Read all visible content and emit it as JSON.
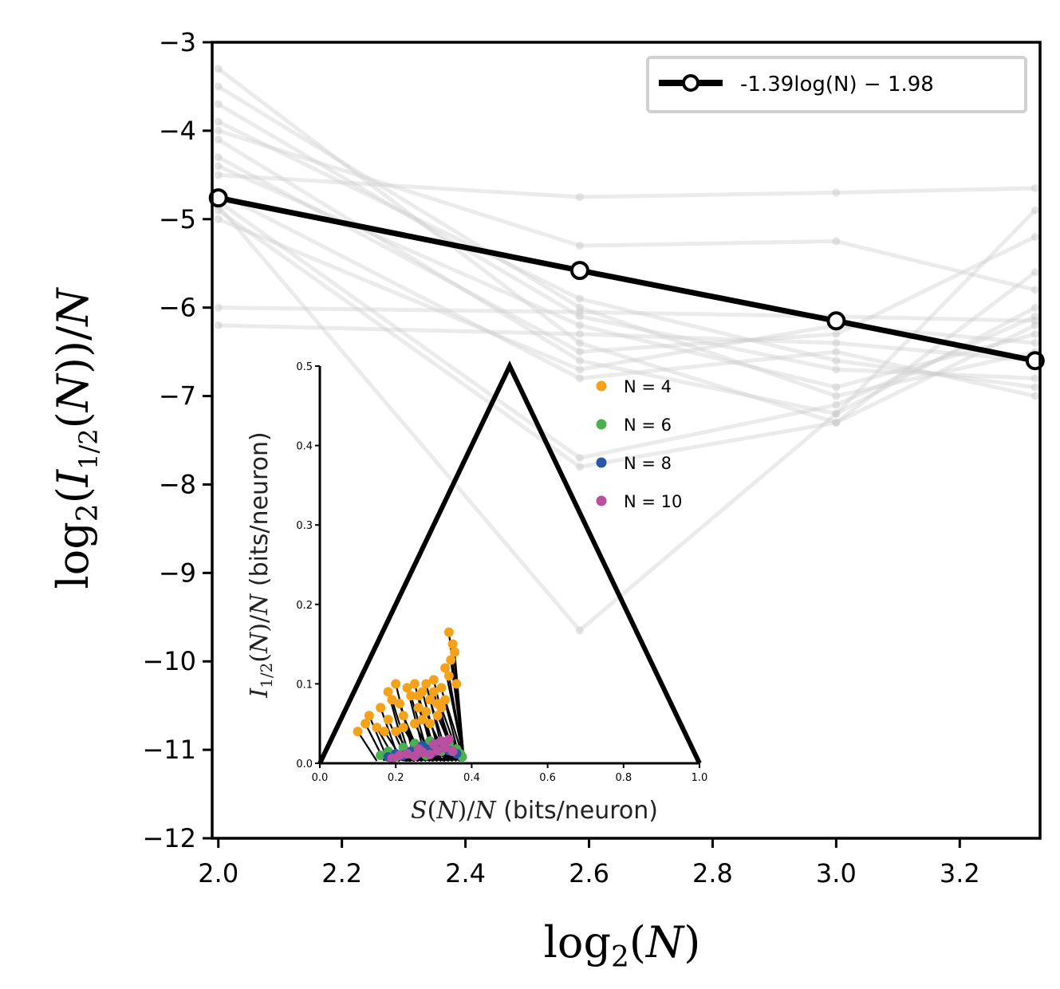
{
  "chart_data": [
    {
      "type": "line",
      "xlabel": "log2(N)",
      "ylabel": "log2(I1/2(N))/N",
      "xlim": [
        1.99,
        3.33
      ],
      "ylim": [
        -12,
        -3
      ],
      "xticks": [
        2.0,
        2.2,
        2.4,
        2.6,
        2.8,
        3.0,
        3.2
      ],
      "xtick_labels": [
        "2.0",
        "2.2",
        "2.4",
        "2.6",
        "2.8",
        "3.0",
        "3.2"
      ],
      "yticks": [
        -3,
        -4,
        -5,
        -6,
        -7,
        -8,
        -9,
        -10,
        -11,
        -12
      ],
      "ytick_labels": [
        "−3",
        "−4",
        "−5",
        "−6",
        "−7",
        "−8",
        "−9",
        "−10",
        "−11",
        "−12"
      ],
      "grid": false,
      "legend_position": "top-right",
      "fit": {
        "name": "-1.39log(N) − 1.98",
        "x": [
          2.0,
          2.585,
          3.0,
          3.322
        ],
        "y": [
          -4.76,
          -5.58,
          -6.15,
          -6.6
        ],
        "color": "#000000"
      },
      "background_series_color": "#cccccc",
      "background_series": [
        {
          "x": [
            2.0,
            2.585,
            3.0,
            3.322
          ],
          "y": [
            -3.3,
            -6.4,
            -7.3,
            -6.2
          ]
        },
        {
          "x": [
            2.0,
            2.585,
            3.0,
            3.322
          ],
          "y": [
            -3.5,
            -6.0,
            -7.0,
            -6.5
          ]
        },
        {
          "x": [
            2.0,
            2.585,
            3.0,
            3.322
          ],
          "y": [
            -3.7,
            -6.1,
            -6.7,
            -6.8
          ]
        },
        {
          "x": [
            2.0,
            2.585,
            3.0,
            3.322
          ],
          "y": [
            -3.9,
            -5.9,
            -6.6,
            -6.9
          ]
        },
        {
          "x": [
            2.0,
            2.585,
            3.0,
            3.322
          ],
          "y": [
            -4.0,
            -5.3,
            -5.25,
            -5.8
          ]
        },
        {
          "x": [
            2.0,
            2.585,
            3.0,
            3.322
          ],
          "y": [
            -4.1,
            -6.6,
            -7.2,
            -6.0
          ]
        },
        {
          "x": [
            2.0,
            2.585,
            3.0,
            3.322
          ],
          "y": [
            -4.3,
            -6.5,
            -6.3,
            -5.2
          ]
        },
        {
          "x": [
            2.0,
            2.585,
            3.0,
            3.322
          ],
          "y": [
            -4.4,
            -6.2,
            -6.9,
            -6.3
          ]
        },
        {
          "x": [
            2.0,
            2.585,
            3.0,
            3.322
          ],
          "y": [
            -4.5,
            -4.75,
            -4.7,
            -4.65
          ]
        },
        {
          "x": [
            2.0,
            2.585,
            3.0,
            3.322
          ],
          "y": [
            -4.7,
            -6.8,
            -6.5,
            -7.0
          ]
        },
        {
          "x": [
            2.0,
            2.585,
            3.0,
            3.322
          ],
          "y": [
            -4.8,
            -7.7,
            -7.1,
            -6.1
          ]
        },
        {
          "x": [
            2.0,
            2.585,
            3.0,
            3.322
          ],
          "y": [
            -4.85,
            -9.65,
            -7.2,
            -4.9
          ]
        },
        {
          "x": [
            2.0,
            2.585,
            3.0,
            3.322
          ],
          "y": [
            -5.0,
            -6.7,
            -6.2,
            -6.4
          ]
        },
        {
          "x": [
            2.0,
            2.585,
            3.0,
            3.322
          ],
          "y": [
            -6.0,
            -6.05,
            -6.1,
            -6.15
          ]
        },
        {
          "x": [
            2.0,
            2.585,
            3.0,
            3.322
          ],
          "y": [
            -6.2,
            -6.3,
            -6.4,
            -6.6
          ]
        },
        {
          "x": [
            2.0,
            2.585,
            3.0,
            3.322
          ],
          "y": [
            -4.9,
            -7.8,
            -7.3,
            -5.6
          ]
        }
      ]
    },
    {
      "type": "scatter",
      "xlabel": "S(N)/N (bits/neuron)",
      "ylabel": "I1/2(N)/N (bits/neuron)",
      "xlim": [
        0.0,
        1.0
      ],
      "ylim": [
        0.0,
        0.5
      ],
      "xticks": [
        0.0,
        0.2,
        0.4,
        0.6,
        0.8,
        1.0
      ],
      "xtick_labels": [
        "0.0",
        "0.2",
        "0.4",
        "0.6",
        "0.8",
        "1.0"
      ],
      "yticks": [
        0.0,
        0.1,
        0.2,
        0.3,
        0.4,
        0.5
      ],
      "ytick_labels": [
        "0.0",
        "0.1",
        "0.2",
        "0.3",
        "0.4",
        "0.5"
      ],
      "legend_position": "top-right",
      "bound": {
        "x": [
          0.0,
          0.5,
          1.0
        ],
        "y": [
          0.0,
          0.5,
          0.0
        ],
        "color": "#000000"
      },
      "series": [
        {
          "name": "N = 4",
          "color": "#f4a21c",
          "points": [
            [
              0.1,
              0.04
            ],
            [
              0.12,
              0.05
            ],
            [
              0.13,
              0.06
            ],
            [
              0.15,
              0.045
            ],
            [
              0.16,
              0.07
            ],
            [
              0.18,
              0.09
            ],
            [
              0.19,
              0.08
            ],
            [
              0.2,
              0.1
            ],
            [
              0.21,
              0.075
            ],
            [
              0.22,
              0.06
            ],
            [
              0.23,
              0.095
            ],
            [
              0.24,
              0.085
            ],
            [
              0.25,
              0.1
            ],
            [
              0.26,
              0.07
            ],
            [
              0.27,
              0.09
            ],
            [
              0.28,
              0.065
            ],
            [
              0.29,
              0.08
            ],
            [
              0.3,
              0.09
            ],
            [
              0.31,
              0.075
            ],
            [
              0.32,
              0.095
            ],
            [
              0.33,
              0.12
            ],
            [
              0.34,
              0.11
            ],
            [
              0.345,
              0.13
            ],
            [
              0.35,
              0.15
            ],
            [
              0.34,
              0.165
            ],
            [
              0.36,
              0.1
            ],
            [
              0.355,
              0.14
            ],
            [
              0.33,
              0.08
            ],
            [
              0.31,
              0.06
            ],
            [
              0.29,
              0.05
            ],
            [
              0.27,
              0.055
            ],
            [
              0.25,
              0.05
            ],
            [
              0.22,
              0.045
            ],
            [
              0.2,
              0.04
            ],
            [
              0.18,
              0.055
            ],
            [
              0.17,
              0.04
            ],
            [
              0.3,
              0.105
            ],
            [
              0.28,
              0.1
            ],
            [
              0.26,
              0.085
            ],
            [
              0.32,
              0.07
            ]
          ]
        },
        {
          "name": "N = 6",
          "color": "#4caf50",
          "points": [
            [
              0.16,
              0.01
            ],
            [
              0.18,
              0.015
            ],
            [
              0.2,
              0.008
            ],
            [
              0.22,
              0.02
            ],
            [
              0.24,
              0.012
            ],
            [
              0.26,
              0.018
            ],
            [
              0.28,
              0.01
            ],
            [
              0.3,
              0.022
            ],
            [
              0.32,
              0.015
            ],
            [
              0.34,
              0.025
            ],
            [
              0.36,
              0.018
            ],
            [
              0.37,
              0.012
            ],
            [
              0.375,
              0.008
            ],
            [
              0.25,
              0.025
            ],
            [
              0.29,
              0.028
            ]
          ]
        },
        {
          "name": "N = 8",
          "color": "#2d55a5",
          "points": [
            [
              0.18,
              0.008
            ],
            [
              0.2,
              0.012
            ],
            [
              0.22,
              0.01
            ],
            [
              0.24,
              0.015
            ],
            [
              0.26,
              0.012
            ],
            [
              0.28,
              0.018
            ],
            [
              0.3,
              0.014
            ],
            [
              0.32,
              0.02
            ],
            [
              0.34,
              0.016
            ],
            [
              0.36,
              0.012
            ],
            [
              0.27,
              0.022
            ],
            [
              0.31,
              0.025
            ]
          ]
        },
        {
          "name": "N = 10",
          "color": "#b9509f",
          "points": [
            [
              0.19,
              0.006
            ],
            [
              0.21,
              0.01
            ],
            [
              0.23,
              0.012
            ],
            [
              0.25,
              0.009
            ],
            [
              0.27,
              0.014
            ],
            [
              0.29,
              0.011
            ],
            [
              0.31,
              0.016
            ],
            [
              0.33,
              0.02
            ],
            [
              0.35,
              0.015
            ],
            [
              0.3,
              0.024
            ],
            [
              0.32,
              0.028
            ],
            [
              0.26,
              0.018
            ],
            [
              0.34,
              0.03
            ]
          ]
        }
      ]
    }
  ]
}
